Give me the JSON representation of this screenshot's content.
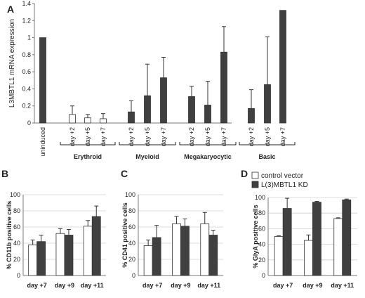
{
  "chart_data": [
    {
      "id": "A",
      "panel_letter": "A",
      "type": "bar",
      "ylabel": "L3MBTL1 mRNA expression",
      "ylim": [
        0,
        1.4
      ],
      "yticks": [
        "0",
        "0.2",
        "0.4",
        "0.6",
        "0.8",
        "1",
        "1.2",
        "1.4"
      ],
      "grid": false,
      "categories": [
        "uninduced",
        "day +2",
        "day +5",
        "day +7",
        "day +2",
        "day +5",
        "day +7",
        "day +2",
        "day +5",
        "day +7",
        "day +2",
        "day +5",
        "day +7"
      ],
      "groups": [
        {
          "label": "Erythroid",
          "indices": [
            1,
            2,
            3
          ]
        },
        {
          "label": "Myeloid",
          "indices": [
            4,
            5,
            6
          ]
        },
        {
          "label": "Megakaryocytic",
          "indices": [
            7,
            8,
            9
          ]
        },
        {
          "label": "Basic",
          "indices": [
            10,
            11,
            12
          ]
        }
      ],
      "values": [
        1.0,
        0.1,
        0.06,
        0.05,
        0.13,
        0.32,
        0.53,
        0.31,
        0.21,
        0.83,
        0.17,
        0.45,
        1.32
      ],
      "errors": [
        0,
        0.1,
        0.04,
        0.06,
        0.13,
        0.37,
        0.24,
        0.12,
        0.28,
        0.3,
        0.22,
        0.56,
        0
      ],
      "fills": [
        "#404040",
        "#ffffff",
        "#ffffff",
        "#ffffff",
        "#404040",
        "#404040",
        "#404040",
        "#404040",
        "#404040",
        "#404040",
        "#404040",
        "#404040",
        "#404040"
      ]
    },
    {
      "id": "B",
      "panel_letter": "B",
      "type": "bar",
      "ylabel": "% CD11b positive cells",
      "ylim": [
        0,
        100
      ],
      "yticks": [
        "0",
        "20",
        "40",
        "60",
        "80",
        "100"
      ],
      "grid": true,
      "categories": [
        "day +7",
        "day +9",
        "day +11"
      ],
      "series": [
        {
          "values": [
            38,
            52,
            61
          ],
          "errors": [
            6,
            6,
            7
          ],
          "color": "#ffffff"
        },
        {
          "values": [
            42,
            50,
            73
          ],
          "errors": [
            8,
            7,
            13
          ],
          "color": "#404040"
        }
      ]
    },
    {
      "id": "C",
      "panel_letter": "C",
      "type": "bar",
      "ylabel": "% CD41 positive cells",
      "ylim": [
        0,
        100
      ],
      "yticks": [
        "0",
        "20",
        "40",
        "60",
        "80",
        "100"
      ],
      "grid": true,
      "categories": [
        "day +7",
        "day +9",
        "day +11"
      ],
      "series": [
        {
          "values": [
            37,
            64,
            64
          ],
          "errors": [
            7,
            9,
            14
          ],
          "color": "#ffffff"
        },
        {
          "values": [
            47,
            61,
            50
          ],
          "errors": [
            15,
            9,
            6
          ],
          "color": "#404040"
        }
      ]
    },
    {
      "id": "D",
      "panel_letter": "D",
      "type": "bar",
      "ylabel": "% GlyA positive cells",
      "ylim": [
        0,
        100
      ],
      "yticks": [
        "0",
        "20",
        "40",
        "60",
        "80",
        "100"
      ],
      "grid": true,
      "categories": [
        "day +7",
        "day +9",
        "day +11"
      ],
      "legend": {
        "position": "top-right",
        "entries": [
          "control vector",
          "L(3)MBTL1 KD"
        ]
      },
      "series": [
        {
          "name": "control vector",
          "values": [
            50,
            45,
            73
          ],
          "errors": [
            1,
            7,
            1
          ],
          "color": "#ffffff"
        },
        {
          "name": "L(3)MBTL1 KD",
          "values": [
            86,
            94,
            97
          ],
          "errors": [
            13,
            1,
            1
          ],
          "color": "#404040"
        }
      ]
    }
  ]
}
